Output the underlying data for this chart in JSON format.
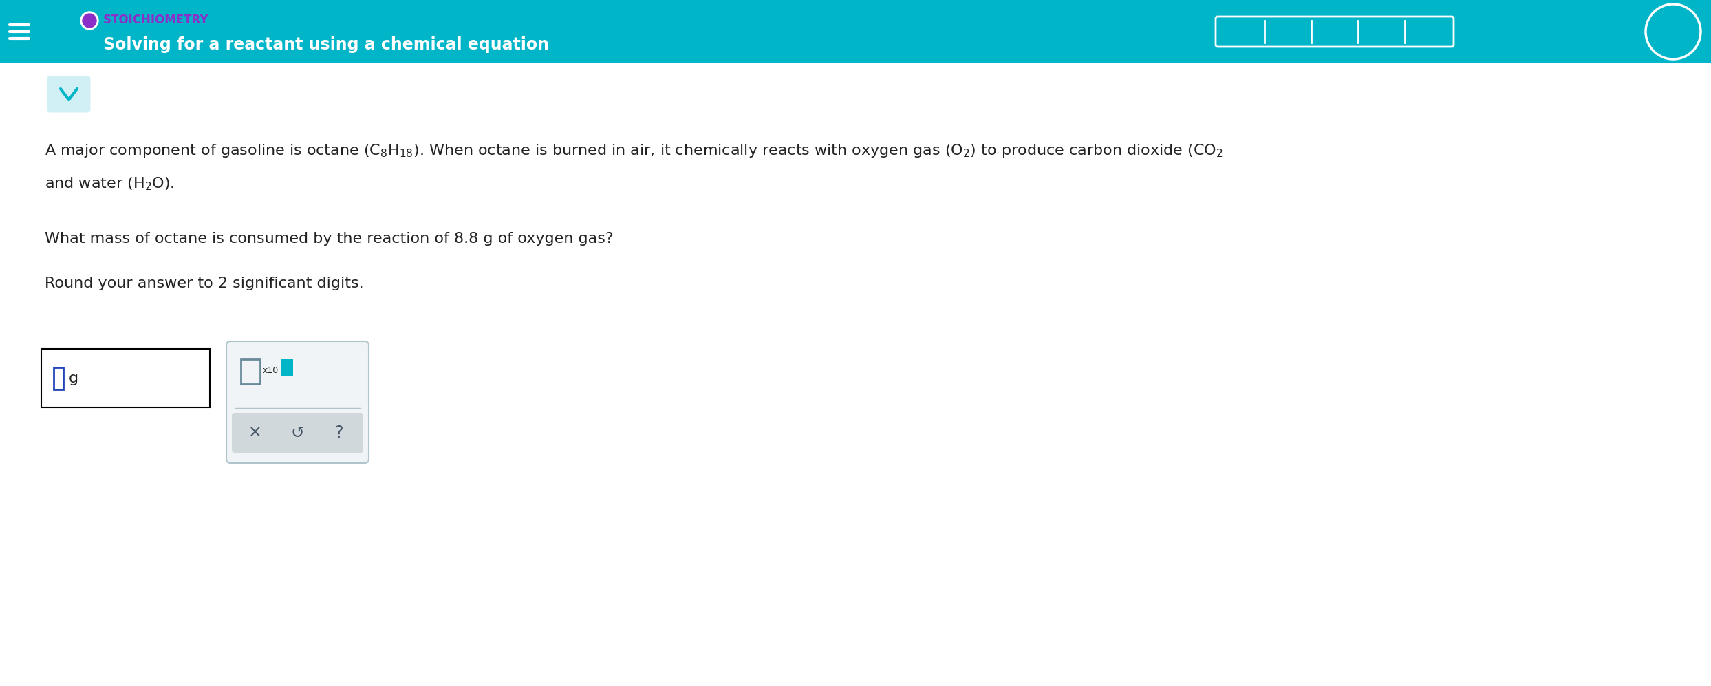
{
  "bg_color": "#ffffff",
  "header_color": "#00b5c8",
  "header_text_stoich": "STOICHIOMETRY",
  "header_text_stoich_color": "#8b2fc9",
  "header_text_title": "Solving for a reactant using a chemical equation",
  "header_text_title_color": "#ffffff",
  "hamburger_color": "#ffffff",
  "question_text": "What mass of octane is consumed by the reaction of 8.8 g of oxygen gas?",
  "round_text": "Round your answer to 2 significant digits.",
  "answer_box_label": "g",
  "font_size_body": 16,
  "font_size_header_title": 17,
  "font_size_header_stoich": 12,
  "teal_color": "#00b5c8",
  "teal_light": "#d0f0f5",
  "dark_text_color": "#222222",
  "input_box_color": "#2244bb",
  "math_panel_bg": "#f0f4f6",
  "math_panel_border": "#b0c4cc",
  "math_box_gray": "#6a8a9a",
  "btn_bg": "#d0d8dc",
  "btn_color": "#445566"
}
